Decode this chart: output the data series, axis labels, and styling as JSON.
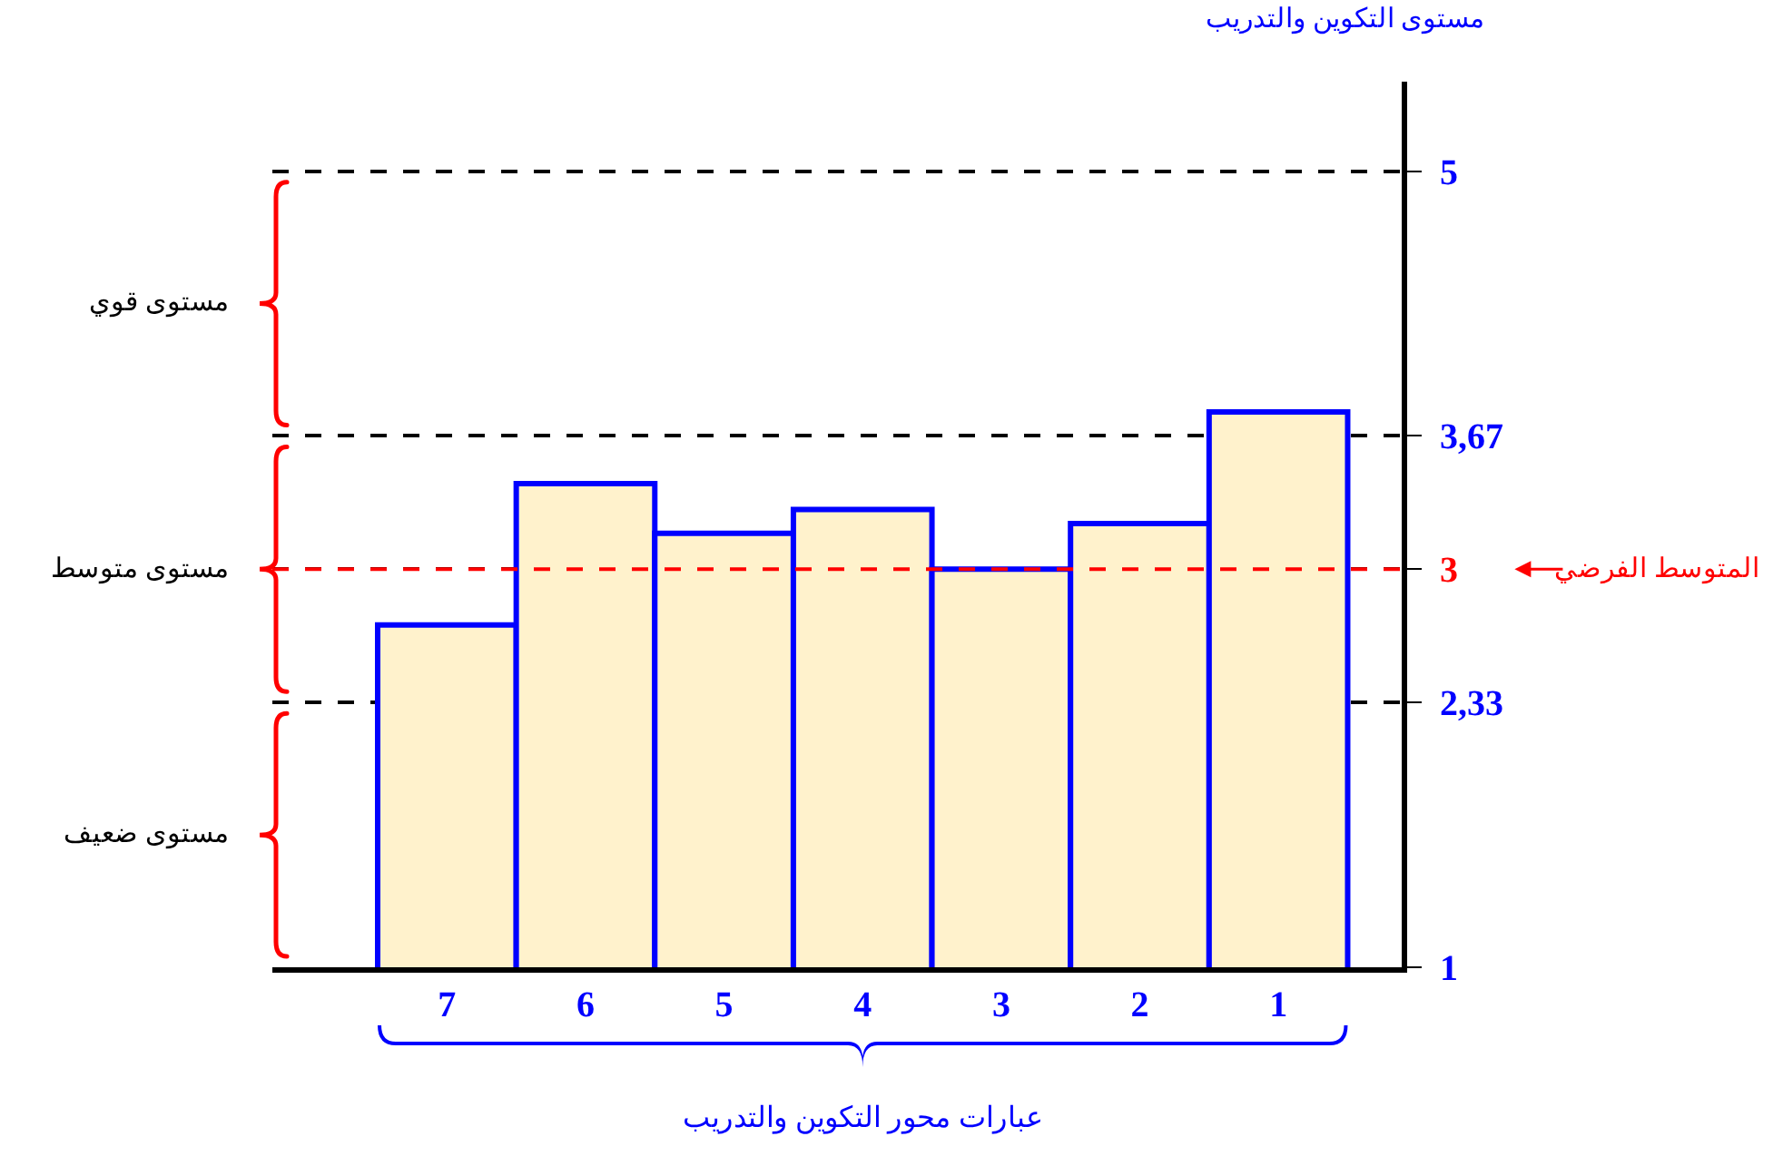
{
  "chart_data": {
    "type": "bar",
    "xlabel": "عبارات محور التكوين والتدريب",
    "ylabel": "مستوى التكوين والتدريب",
    "categories": [
      "7",
      "6",
      "5",
      "4",
      "3",
      "2",
      "1"
    ],
    "values": [
      2.72,
      3.43,
      3.18,
      3.3,
      3.0,
      3.23,
      3.79
    ],
    "color": "#fff2cc",
    "ylim": [
      1,
      5.45
    ],
    "yticks": [
      1,
      {
        "value": 2.33,
        "label": "2,33"
      },
      3,
      {
        "value": 3.67,
        "label": "3,67"
      },
      5
    ],
    "grid": "y",
    "ref_lines": [
      {
        "axis": "y",
        "value": 3,
        "label": "المتوسط الفرضي",
        "color": "#ff0000",
        "line_style": "dashed"
      }
    ],
    "annotations": [
      "مستوى قوي",
      "مستوى متوسط",
      "مستوى ضعيف"
    ]
  }
}
